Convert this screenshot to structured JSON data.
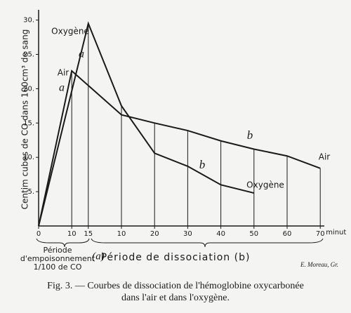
{
  "chart_data": {
    "type": "line",
    "x_label": "minut",
    "y_label": "Centim cubes de CO dans 100cm³ de sang",
    "xlim": [
      0,
      88
    ],
    "ylim": [
      0,
      31
    ],
    "xticks": [
      0,
      10,
      15,
      {
        "value": 25,
        "label": "10"
      },
      {
        "value": 35,
        "label": "20"
      },
      {
        "value": 45,
        "label": "30"
      },
      {
        "value": 55,
        "label": "40"
      },
      {
        "value": 65,
        "label": "50"
      },
      {
        "value": 75,
        "label": "60"
      },
      {
        "value": 85,
        "label": "70"
      }
    ],
    "yticks": [
      {
        "value": 5,
        "label": "5."
      },
      {
        "value": 10,
        "label": "10."
      },
      {
        "value": 15,
        "label": "15."
      },
      {
        "value": 20,
        "label": "20."
      },
      {
        "value": 25,
        "label": "25."
      },
      {
        "value": 30,
        "label": "30."
      }
    ],
    "series": [
      {
        "name": "Oxygène",
        "color": "#1a1a1a",
        "x": [
          0,
          15,
          25,
          35,
          45,
          55,
          65
        ],
        "values": [
          0,
          29.5,
          17.5,
          10.6,
          8.7,
          6.0,
          4.8
        ]
      },
      {
        "name": "Air",
        "color": "#1a1a1a",
        "x": [
          0,
          10,
          25,
          35,
          45,
          55,
          65,
          75,
          85
        ],
        "values": [
          0,
          22.6,
          16.2,
          15.0,
          13.9,
          12.4,
          11.2,
          10.2,
          8.4
        ]
      }
    ],
    "annotations": [
      "a",
      "a",
      "b",
      "b",
      "E. Moreau, Gr."
    ],
    "period_a": {
      "lines": [
        "Période",
        "d'empoisonnement",
        "1/100 de CO"
      ],
      "tag": "(a)"
    },
    "period_b": "Période de dissociation (b)",
    "caption": [
      "Fig. 3. — Courbes de dissociation de l'hémoglobine oxycarbonée",
      "dans l'air et dans l'oxygène."
    ]
  }
}
